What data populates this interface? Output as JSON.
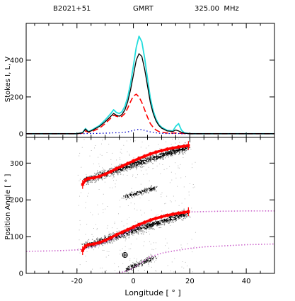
{
  "header": {
    "pulsar": "B2021+51",
    "telescope": "GMRT",
    "frequency": "325.00  MHz"
  },
  "colors": {
    "stokes_I": "#000000",
    "linear_L": "#ff0000",
    "circular_V": "#0000cc",
    "total_cyan": "#22dddd",
    "pa_points": "#ff0000",
    "pa_density": "#000000",
    "rvm_fit": "#cc66cc"
  },
  "chart_data": [
    {
      "type": "line",
      "ylabel": "Stokes I, L, V",
      "xlim": [
        -38,
        50
      ],
      "ylim": [
        -20,
        600
      ],
      "yticks": [
        0,
        200,
        400
      ],
      "grid": false,
      "legend": "none",
      "x": [
        -38,
        -30,
        -20,
        -18,
        -17,
        -16,
        -15,
        -12,
        -10,
        -8,
        -7,
        -6,
        -5,
        -4,
        -3,
        -2,
        -1,
        0,
        1,
        2,
        3,
        4,
        5,
        6,
        7,
        8,
        9,
        10,
        12,
        14,
        15,
        16,
        17,
        18,
        20,
        22,
        25,
        30,
        40,
        50
      ],
      "series": [
        {
          "id": "I",
          "values": [
            0,
            0,
            0,
            5,
            25,
            10,
            15,
            40,
            65,
            95,
            110,
            100,
            95,
            105,
            130,
            175,
            240,
            320,
            400,
            435,
            420,
            350,
            260,
            170,
            110,
            70,
            45,
            30,
            15,
            12,
            20,
            15,
            8,
            3,
            0,
            0,
            0,
            0,
            0,
            0
          ]
        },
        {
          "id": "L",
          "values": [
            0,
            0,
            0,
            3,
            15,
            8,
            10,
            30,
            55,
            85,
            100,
            95,
            90,
            95,
            110,
            140,
            175,
            205,
            215,
            200,
            170,
            130,
            90,
            55,
            35,
            20,
            12,
            8,
            4,
            3,
            4,
            3,
            2,
            1,
            0,
            0,
            0,
            0,
            0,
            0
          ]
        },
        {
          "id": "V",
          "values": [
            0,
            0,
            0,
            0,
            1,
            1,
            1,
            2,
            3,
            4,
            5,
            5,
            5,
            6,
            8,
            10,
            14,
            18,
            22,
            24,
            22,
            18,
            14,
            10,
            7,
            5,
            3,
            2,
            1,
            1,
            1,
            1,
            0,
            0,
            0,
            0,
            0,
            0,
            0,
            0
          ]
        },
        {
          "id": "total",
          "values": [
            0,
            0,
            0,
            6,
            28,
            12,
            18,
            45,
            75,
            110,
            130,
            115,
            110,
            120,
            150,
            200,
            275,
            370,
            470,
            530,
            500,
            410,
            300,
            195,
            125,
            80,
            50,
            35,
            18,
            15,
            40,
            55,
            20,
            5,
            0,
            0,
            0,
            0,
            0,
            0
          ]
        }
      ]
    },
    {
      "type": "scatter",
      "xlabel": "Longitude [ ° ]",
      "ylabel": "Position Angle [ ° ]",
      "xlim": [
        -38,
        50
      ],
      "ylim": [
        0,
        370
      ],
      "xticks": [
        -20,
        0,
        20,
        40
      ],
      "yticks": [
        0,
        100,
        200,
        300
      ],
      "grid": false,
      "legend": "none",
      "pa_lower": {
        "x": [
          -18,
          -17,
          -16,
          -14,
          -12,
          -10,
          -8,
          -6,
          -4,
          -2,
          0,
          2,
          4,
          6,
          8,
          10,
          12,
          14,
          16,
          18,
          19.5
        ],
        "y": [
          62,
          74,
          78,
          80,
          84,
          90,
          97,
          105,
          112,
          119,
          126,
          133,
          139,
          145,
          150,
          154,
          158,
          161,
          164,
          166,
          168
        ]
      },
      "pa_upper": {
        "x": [
          -18,
          -17,
          -16,
          -14,
          -12,
          -10,
          -8,
          -6,
          -4,
          -2,
          0,
          2,
          4,
          6,
          8,
          10,
          12,
          14,
          16,
          18,
          19.5
        ],
        "y": [
          242,
          254,
          258,
          260,
          264,
          270,
          277,
          285,
          292,
          299,
          306,
          313,
          319,
          325,
          330,
          334,
          338,
          341,
          344,
          346,
          348
        ]
      },
      "density_ridges": [
        {
          "x0": -17,
          "x1": 19,
          "y0": 75,
          "y1": 165,
          "spread": 12
        },
        {
          "x0": -17,
          "x1": 19,
          "y0": 255,
          "y1": 345,
          "spread": 12
        },
        {
          "x0": -3,
          "x1": 8,
          "y0": 210,
          "y1": 235,
          "spread": 7
        },
        {
          "x0": -3,
          "x1": 7,
          "y0": 10,
          "y1": 45,
          "spread": 7
        }
      ],
      "rvm_curves": [
        {
          "name": "rvm",
          "x": [
            -38,
            -30,
            -25,
            -20,
            -15,
            -10,
            -5,
            0,
            5,
            10,
            15,
            20,
            25,
            30,
            40,
            50
          ],
          "y": [
            60,
            61,
            62,
            64,
            70,
            85,
            100,
            120,
            140,
            155,
            163,
            167,
            168,
            169,
            170,
            170
          ]
        },
        {
          "name": "rvm-orthogonal",
          "x": [
            -6,
            -3,
            0,
            3,
            6,
            10,
            15,
            20,
            25,
            30,
            40,
            50
          ],
          "y": [
            0,
            5,
            15,
            30,
            45,
            55,
            62,
            68,
            72,
            74,
            78,
            80
          ]
        }
      ],
      "marker": {
        "x": -3,
        "y": 50,
        "symbol": "⊕"
      }
    }
  ]
}
